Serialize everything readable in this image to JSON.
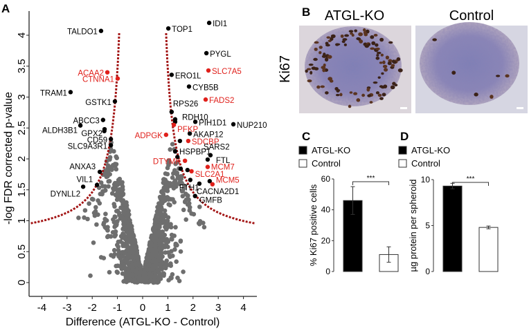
{
  "chart_data": [
    {
      "panel": "A",
      "type": "scatter",
      "subtype": "volcano",
      "xlabel": "Difference (ATGL-KO - Control)",
      "ylabel": "-log FDR corrected p-value",
      "xlim": [
        -4.5,
        4.5
      ],
      "ylim": [
        0,
        4.4
      ],
      "xticks": [
        -4,
        -3,
        -2,
        -1,
        0,
        1,
        2,
        3,
        4
      ],
      "yticks": [
        0,
        0.5,
        1,
        1.5,
        2,
        2.5,
        3,
        3.5,
        4
      ],
      "threshold_curve": {
        "formula": "y = 0.67 + 1.11/(|x| - 0.6)",
        "color": "#a31515"
      },
      "background_point_count": 1400,
      "colors": {
        "background": "#6e6e6e",
        "highlight_black": "#000000",
        "highlight_red": "#e0201b"
      },
      "labeled_points": [
        {
          "gene": "TALDO1",
          "x": -1.65,
          "y": 4.07,
          "color": "black"
        },
        {
          "gene": "TOP1",
          "x": 1.02,
          "y": 4.11,
          "color": "black"
        },
        {
          "gene": "IDI1",
          "x": 2.64,
          "y": 4.2,
          "color": "black"
        },
        {
          "gene": "PYGL",
          "x": 2.53,
          "y": 3.71,
          "color": "black"
        },
        {
          "gene": "SLC7A5",
          "x": 2.61,
          "y": 3.43,
          "color": "red"
        },
        {
          "gene": "ACAA2",
          "x": -1.4,
          "y": 3.4,
          "color": "red"
        },
        {
          "gene": "CTNNA1",
          "x": -0.99,
          "y": 3.3,
          "color": "red"
        },
        {
          "gene": "ERO1L",
          "x": 1.15,
          "y": 3.36,
          "color": "black"
        },
        {
          "gene": "CYB5B",
          "x": 1.84,
          "y": 3.17,
          "color": "black"
        },
        {
          "gene": "TRAM1",
          "x": -2.86,
          "y": 3.08,
          "color": "black"
        },
        {
          "gene": "FADS2",
          "x": 2.5,
          "y": 2.96,
          "color": "red"
        },
        {
          "gene": "GSTK1",
          "x": -1.1,
          "y": 2.93,
          "color": "black"
        },
        {
          "gene": "RPS26",
          "x": 1.15,
          "y": 2.76,
          "color": "black"
        },
        {
          "gene": "RDH10",
          "x": 1.29,
          "y": 2.6,
          "color": "black"
        },
        {
          "gene": "ABCC3",
          "x": -1.57,
          "y": 2.63,
          "color": "black"
        },
        {
          "gene": "PIH1D1",
          "x": 2.09,
          "y": 2.6,
          "color": "black"
        },
        {
          "gene": "NUP210",
          "x": 3.6,
          "y": 2.56,
          "color": "black"
        },
        {
          "gene": "PFKP",
          "x": 1.24,
          "y": 2.55,
          "color": "red"
        },
        {
          "gene": "ALDH3B1",
          "x": -2.47,
          "y": 2.54,
          "color": "black"
        },
        {
          "gene": "GPX2",
          "x": -1.51,
          "y": 2.48,
          "color": "black"
        },
        {
          "gene": "AKAP12",
          "x": 1.87,
          "y": 2.41,
          "color": "black"
        },
        {
          "gene": "ADPGK",
          "x": 0.93,
          "y": 2.39,
          "color": "red"
        },
        {
          "gene": "SDCBP",
          "x": 1.81,
          "y": 2.29,
          "color": "red"
        },
        {
          "gene": "CD59",
          "x": -1.26,
          "y": 2.32,
          "color": "black"
        },
        {
          "gene": "SLC9A3R1",
          "x": -1.26,
          "y": 2.22,
          "color": "black"
        },
        {
          "gene": "HSPBP1",
          "x": 1.29,
          "y": 2.12,
          "color": "black"
        },
        {
          "gene": "SARS2",
          "x": 2.69,
          "y": 2.06,
          "color": "black"
        },
        {
          "gene": "FTL",
          "x": 2.58,
          "y": 1.99,
          "color": "black"
        },
        {
          "gene": "ANXA3",
          "x": -1.7,
          "y": 1.79,
          "color": "black"
        },
        {
          "gene": "DTYMK",
          "x": 1.68,
          "y": 1.97,
          "color": "red"
        },
        {
          "gene": "MCM7",
          "x": 2.58,
          "y": 1.87,
          "color": "red"
        },
        {
          "gene": "SLC2A1",
          "x": 1.94,
          "y": 1.8,
          "color": "red"
        },
        {
          "gene": "VIL1",
          "x": -1.81,
          "y": 1.58,
          "color": "black"
        },
        {
          "gene": "DYNLL2",
          "x": -2.36,
          "y": 1.55,
          "color": "black"
        },
        {
          "gene": "FTH1",
          "x": 1.89,
          "y": 1.66,
          "color": "black"
        },
        {
          "gene": "CACNA2D1",
          "x": 2.25,
          "y": 1.6,
          "color": "black"
        },
        {
          "gene": "MCM5",
          "x": 2.77,
          "y": 1.59,
          "color": "red"
        },
        {
          "gene": "GMFB",
          "x": 2.08,
          "y": 1.4,
          "color": "black"
        }
      ],
      "unlabeled_highlight_points": [
        {
          "x": 1.29,
          "y": 2.64,
          "color": "black"
        },
        {
          "x": 1.48,
          "y": 2.29,
          "color": "black"
        },
        {
          "x": 1.51,
          "y": 1.84,
          "color": "black"
        },
        {
          "x": 1.78,
          "y": 1.82,
          "color": "black"
        },
        {
          "x": 2.66,
          "y": 1.64,
          "color": "black"
        },
        {
          "x": 1.38,
          "y": 2.03,
          "color": "black"
        },
        {
          "x": -1.52,
          "y": 2.45,
          "color": "black"
        }
      ]
    },
    {
      "panel": "C",
      "type": "bar",
      "categories": [
        "ATGL-KO",
        "Control"
      ],
      "values": [
        46,
        11
      ],
      "errors": [
        9,
        5
      ],
      "ylabel": "% Ki67 positive cells",
      "ylim": [
        0,
        60
      ],
      "yticks": [
        0,
        20,
        40,
        60
      ],
      "significance": "***",
      "legend": [
        "ATGL-KO",
        "Control"
      ],
      "colors": [
        "#000000",
        "#ffffff"
      ]
    },
    {
      "panel": "D",
      "type": "bar",
      "categories": [
        "ATGL-KO",
        "Control"
      ],
      "values": [
        9.3,
        4.8
      ],
      "errors": [
        0.3,
        0.15
      ],
      "ylabel": "µg protein per spheroid",
      "ylim": [
        0,
        10
      ],
      "yticks": [
        0,
        5,
        10
      ],
      "significance": "***",
      "legend": [
        "ATGL-KO",
        "Control"
      ],
      "colors": [
        "#000000",
        "#ffffff"
      ]
    }
  ],
  "panels": {
    "a": "A",
    "b": "B",
    "c": "C",
    "d": "D"
  },
  "panel_b": {
    "row_label": "Ki67",
    "col_labels": [
      "ATGL-KO",
      "Control"
    ]
  }
}
